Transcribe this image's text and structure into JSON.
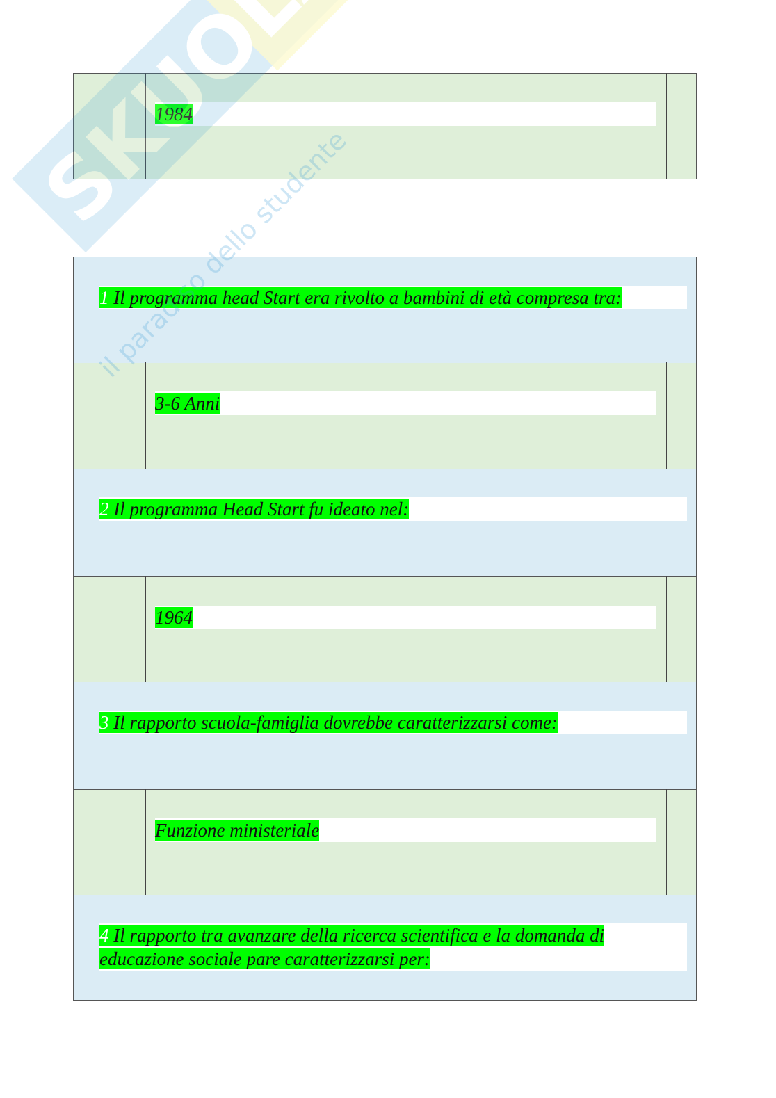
{
  "watermark": {
    "logo": "Skuola.net",
    "tagline": "il paradiso dello studente"
  },
  "top_answer": "1984",
  "questions": [
    {
      "number": "1",
      "text": " Il programma head Start era rivolto a bambini di età compresa tra: ",
      "answer": "3-6 Anni "
    },
    {
      "number": "2",
      "text": " Il programma Head Start fu ideato nel: ",
      "answer": "1964"
    },
    {
      "number": "3",
      "text": " Il rapporto scuola-famiglia dovrebbe caratterizzarsi come: ",
      "answer": "Funzione ministeriale "
    },
    {
      "number": "4",
      "text": " Il rapporto tra avanzare della ricerca scientifica e la domanda di educazione sociale pare caratterizzarsi per: "
    }
  ],
  "colors": {
    "answer_bg": "#dfefd9",
    "question_bg": "#dbecf5",
    "highlight": "#00ff00"
  }
}
